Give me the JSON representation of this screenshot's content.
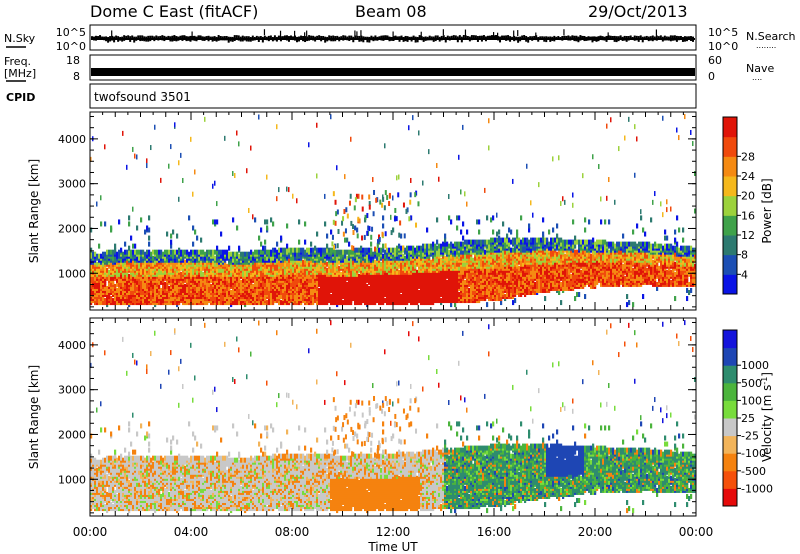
{
  "header": {
    "station": "Dome C East (fitACF)",
    "beam": "Beam 08",
    "date": "29/Oct/2013"
  },
  "noise_panel": {
    "left_label": "N.Sky",
    "left_ticks": [
      "10^5",
      "10^0"
    ],
    "right_ticks": [
      "10^5",
      "10^0"
    ],
    "right_label": "N.Search",
    "right_dots": "........"
  },
  "freq_panel": {
    "left_label_top": "Freq.",
    "left_label_bottom": "[MHz]",
    "left_ticks": [
      "18",
      "8"
    ],
    "right_ticks": [
      "60",
      "0"
    ],
    "right_label": "Nave",
    "right_dots": "...."
  },
  "cpid_panel": {
    "label": "CPID",
    "program": "twofsound 3501"
  },
  "chart_data": [
    {
      "type": "heatmap",
      "name": "power-panel",
      "ylabel": "Slant Range [km]",
      "ylim": [
        180,
        4600
      ],
      "yticks": [
        1000,
        2000,
        3000,
        4000
      ],
      "xlim_hours": [
        0,
        24
      ],
      "colorbar": {
        "label": "Power [dB]",
        "ticks": [
          "4",
          "8",
          "12",
          "16",
          "20",
          "24",
          "28"
        ],
        "colors": [
          "#0a14e6",
          "#1c4fb4",
          "#2d7a70",
          "#3fa24a",
          "#9cd23c",
          "#f5b81c",
          "#f58a12",
          "#f04a0c",
          "#e01408"
        ]
      },
      "band": {
        "bottom_km": [
          600,
          600,
          600,
          600,
          600,
          600,
          600,
          650,
          700,
          900,
          1000,
          1050,
          1000
        ],
        "top_km": [
          1400,
          1450,
          1450,
          1400,
          1500,
          1450,
          1500,
          1600,
          1700,
          1700,
          1650,
          1600,
          1500
        ],
        "hours": [
          0,
          2,
          4,
          6,
          8,
          10,
          12,
          14,
          16,
          18,
          20,
          22,
          24
        ]
      }
    },
    {
      "type": "heatmap",
      "name": "velocity-panel",
      "ylabel": "Slant Range [km]",
      "ylim": [
        180,
        4600
      ],
      "yticks": [
        1000,
        2000,
        3000,
        4000
      ],
      "xlim_hours": [
        0,
        24
      ],
      "xticks": [
        "00:00",
        "04:00",
        "08:00",
        "12:00",
        "16:00",
        "20:00",
        "00:00"
      ],
      "xlabel": "Time UT",
      "colorbar": {
        "label": "Velocity [m s",
        "label_sup": "-1",
        "label_end": "]",
        "ticks": [
          "-1000",
          "-500",
          "-100",
          "-25",
          "25",
          "100",
          "500",
          "1000"
        ],
        "colors": [
          "#e60a0a",
          "#f5500a",
          "#f5820f",
          "#f2b45a",
          "#c8c8c8",
          "#78dc3c",
          "#4bb43c",
          "#2e8c6e",
          "#1e46b4",
          "#1414dc"
        ]
      }
    }
  ]
}
